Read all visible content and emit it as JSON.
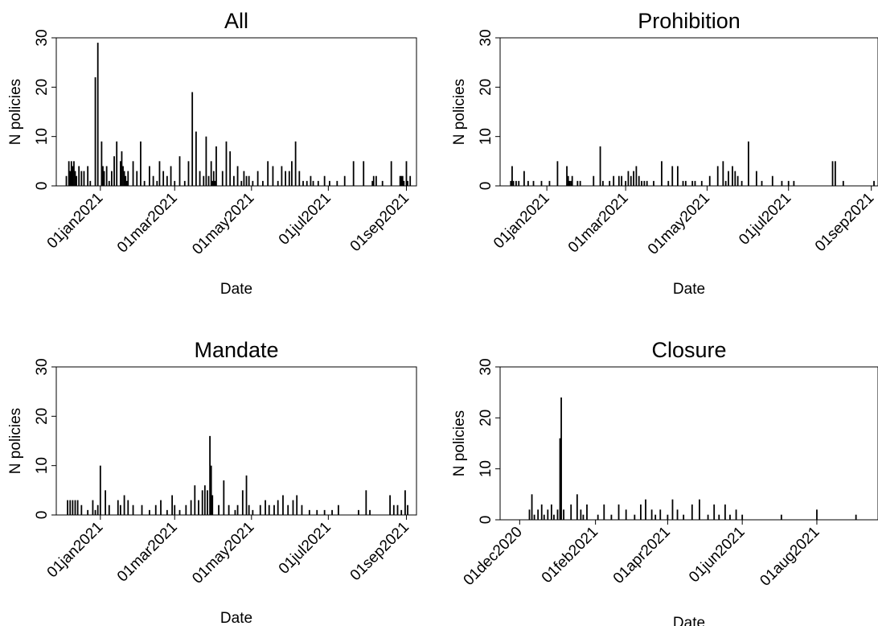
{
  "figure": {
    "background": "#ffffff",
    "bar_color": "#000000"
  },
  "chart_data": [
    {
      "type": "bar",
      "title": "All",
      "xlabel": "Date",
      "ylabel": "N policies",
      "ylim": [
        0,
        30
      ],
      "yticks": [
        0,
        10,
        20,
        30
      ],
      "xlim": [
        "2020-11-27",
        "2021-09-09"
      ],
      "xticks": [
        "2021-01-01",
        "2021-03-01",
        "2021-05-01",
        "2021-07-01",
        "2021-09-01"
      ],
      "xtick_labels": [
        "01jan2021",
        "01mar2021",
        "01may2021",
        "01jul2021",
        "01sep2021"
      ],
      "grid": false,
      "x": [
        "2020-12-05",
        "2020-12-07",
        "2020-12-08",
        "2020-12-09",
        "2020-12-10",
        "2020-12-11",
        "2020-12-12",
        "2020-12-13",
        "2020-12-15",
        "2020-12-17",
        "2020-12-19",
        "2020-12-22",
        "2020-12-24",
        "2020-12-28",
        "2020-12-30",
        "2021-01-02",
        "2021-01-03",
        "2021-01-04",
        "2021-01-06",
        "2021-01-08",
        "2021-01-10",
        "2021-01-12",
        "2021-01-14",
        "2021-01-17",
        "2021-01-18",
        "2021-01-19",
        "2021-01-20",
        "2021-01-21",
        "2021-01-22",
        "2021-01-23",
        "2021-01-27",
        "2021-01-30",
        "2021-02-02",
        "2021-02-05",
        "2021-02-09",
        "2021-02-12",
        "2021-02-15",
        "2021-02-17",
        "2021-02-20",
        "2021-02-23",
        "2021-02-26",
        "2021-03-01",
        "2021-03-05",
        "2021-03-09",
        "2021-03-12",
        "2021-03-15",
        "2021-03-18",
        "2021-03-21",
        "2021-03-24",
        "2021-03-26",
        "2021-03-28",
        "2021-03-30",
        "2021-03-31",
        "2021-04-01",
        "2021-04-02",
        "2021-04-03",
        "2021-04-08",
        "2021-04-11",
        "2021-04-14",
        "2021-04-17",
        "2021-04-20",
        "2021-04-23",
        "2021-04-25",
        "2021-04-27",
        "2021-04-29",
        "2021-05-02",
        "2021-05-06",
        "2021-05-10",
        "2021-05-14",
        "2021-05-18",
        "2021-05-22",
        "2021-05-25",
        "2021-05-28",
        "2021-05-31",
        "2021-06-02",
        "2021-06-05",
        "2021-06-08",
        "2021-06-11",
        "2021-06-14",
        "2021-06-17",
        "2021-06-19",
        "2021-06-23",
        "2021-06-28",
        "2021-07-02",
        "2021-07-08",
        "2021-07-14",
        "2021-07-21",
        "2021-07-29",
        "2021-08-05",
        "2021-08-06",
        "2021-08-08",
        "2021-08-13",
        "2021-08-20",
        "2021-08-27",
        "2021-08-28",
        "2021-08-29",
        "2021-08-30",
        "2021-09-01",
        "2021-09-02",
        "2021-09-04"
      ],
      "values": [
        2,
        5,
        3,
        5,
        4,
        5,
        3,
        2,
        4,
        3,
        3,
        4,
        1,
        22,
        29,
        9,
        4,
        3,
        4,
        1,
        3,
        6,
        9,
        5,
        7,
        4,
        3,
        2,
        1,
        3,
        5,
        3,
        9,
        1,
        4,
        2,
        1,
        5,
        3,
        2,
        4,
        1,
        6,
        1,
        5,
        19,
        11,
        3,
        2,
        10,
        2,
        5,
        1,
        3,
        1,
        8,
        3,
        9,
        7,
        2,
        4,
        1,
        3,
        2,
        2,
        1,
        3,
        1,
        5,
        4,
        1,
        4,
        3,
        3,
        5,
        9,
        3,
        1,
        1,
        2,
        1,
        1,
        2,
        1,
        1,
        2,
        5,
        5,
        1,
        2,
        2,
        1,
        5,
        2,
        2,
        2,
        1,
        5,
        1,
        2
      ]
    },
    {
      "type": "bar",
      "title": "Prohibition",
      "xlabel": "Date",
      "ylabel": "N policies",
      "ylim": [
        0,
        30
      ],
      "yticks": [
        0,
        10,
        20,
        30
      ],
      "xlim": [
        "2020-11-27",
        "2021-09-06"
      ],
      "xticks": [
        "2021-01-01",
        "2021-03-01",
        "2021-05-01",
        "2021-07-01",
        "2021-09-01"
      ],
      "xtick_labels": [
        "01jan2021",
        "01mar2021",
        "01may2021",
        "01jul2021",
        "01sep2021"
      ],
      "grid": false,
      "x": [
        "2020-12-05",
        "2020-12-06",
        "2020-12-07",
        "2020-12-09",
        "2020-12-11",
        "2020-12-15",
        "2020-12-18",
        "2020-12-22",
        "2020-12-28",
        "2021-01-03",
        "2021-01-09",
        "2021-01-16",
        "2021-01-17",
        "2021-01-18",
        "2021-01-19",
        "2021-01-20",
        "2021-01-24",
        "2021-01-26",
        "2021-02-05",
        "2021-02-10",
        "2021-02-12",
        "2021-02-17",
        "2021-02-20",
        "2021-02-24",
        "2021-02-26",
        "2021-03-01",
        "2021-03-03",
        "2021-03-05",
        "2021-03-07",
        "2021-03-09",
        "2021-03-11",
        "2021-03-13",
        "2021-03-15",
        "2021-03-17",
        "2021-03-22",
        "2021-03-28",
        "2021-04-02",
        "2021-04-05",
        "2021-04-09",
        "2021-04-13",
        "2021-04-15",
        "2021-04-20",
        "2021-04-22",
        "2021-04-27",
        "2021-05-03",
        "2021-05-09",
        "2021-05-13",
        "2021-05-15",
        "2021-05-17",
        "2021-05-20",
        "2021-05-22",
        "2021-05-24",
        "2021-05-27",
        "2021-06-01",
        "2021-06-07",
        "2021-06-11",
        "2021-06-19",
        "2021-06-26",
        "2021-07-01",
        "2021-07-05",
        "2021-08-03",
        "2021-08-05",
        "2021-08-11",
        "2021-09-03"
      ],
      "values": [
        1,
        4,
        1,
        1,
        1,
        3,
        1,
        1,
        1,
        1,
        5,
        4,
        2,
        1,
        1,
        2,
        1,
        1,
        2,
        8,
        1,
        1,
        2,
        2,
        2,
        1,
        3,
        2,
        3,
        4,
        2,
        1,
        1,
        1,
        1,
        5,
        1,
        4,
        4,
        1,
        1,
        1,
        1,
        1,
        2,
        4,
        5,
        1,
        3,
        4,
        3,
        2,
        1,
        9,
        3,
        1,
        2,
        1,
        1,
        1,
        5,
        5,
        1,
        1
      ]
    },
    {
      "type": "bar",
      "title": "Mandate",
      "xlabel": "Date",
      "ylabel": "N policies",
      "ylim": [
        0,
        30
      ],
      "yticks": [
        0,
        10,
        20,
        30
      ],
      "xlim": [
        "2020-11-27",
        "2021-09-09"
      ],
      "xticks": [
        "2021-01-01",
        "2021-03-01",
        "2021-05-01",
        "2021-07-01",
        "2021-09-01"
      ],
      "xtick_labels": [
        "01jan2021",
        "01mar2021",
        "01may2021",
        "01jul2021",
        "01sep2021"
      ],
      "grid": false,
      "x": [
        "2020-12-06",
        "2020-12-08",
        "2020-12-10",
        "2020-12-12",
        "2020-12-14",
        "2020-12-17",
        "2020-12-22",
        "2020-12-26",
        "2020-12-28",
        "2020-12-30",
        "2021-01-01",
        "2021-01-05",
        "2021-01-08",
        "2021-01-15",
        "2021-01-17",
        "2021-01-20",
        "2021-01-23",
        "2021-01-27",
        "2021-02-03",
        "2021-02-09",
        "2021-02-14",
        "2021-02-18",
        "2021-02-23",
        "2021-02-27",
        "2021-03-01",
        "2021-03-05",
        "2021-03-10",
        "2021-03-14",
        "2021-03-17",
        "2021-03-20",
        "2021-03-23",
        "2021-03-25",
        "2021-03-27",
        "2021-03-29",
        "2021-03-30",
        "2021-03-31",
        "2021-04-05",
        "2021-04-09",
        "2021-04-13",
        "2021-04-18",
        "2021-04-20",
        "2021-04-24",
        "2021-04-27",
        "2021-04-29",
        "2021-05-02",
        "2021-05-08",
        "2021-05-12",
        "2021-05-15",
        "2021-05-19",
        "2021-05-22",
        "2021-05-26",
        "2021-05-30",
        "2021-06-03",
        "2021-06-06",
        "2021-06-10",
        "2021-06-16",
        "2021-06-22",
        "2021-06-28",
        "2021-07-04",
        "2021-07-09",
        "2021-07-25",
        "2021-07-31",
        "2021-08-03",
        "2021-08-19",
        "2021-08-22",
        "2021-08-25",
        "2021-08-28",
        "2021-08-31",
        "2021-09-02"
      ],
      "values": [
        3,
        3,
        3,
        3,
        3,
        2,
        1,
        3,
        1,
        2,
        10,
        5,
        2,
        3,
        2,
        4,
        3,
        2,
        2,
        1,
        2,
        3,
        1,
        4,
        2,
        1,
        2,
        3,
        6,
        3,
        5,
        6,
        5,
        16,
        10,
        4,
        2,
        7,
        2,
        1,
        2,
        5,
        8,
        2,
        1,
        2,
        3,
        2,
        2,
        3,
        4,
        2,
        3,
        4,
        2,
        1,
        1,
        1,
        1,
        2,
        1,
        5,
        1,
        4,
        2,
        2,
        1,
        5,
        2
      ]
    },
    {
      "type": "bar",
      "title": "Closure",
      "xlabel": "Date",
      "ylabel": "N policies",
      "ylim": [
        0,
        30
      ],
      "yticks": [
        0,
        10,
        20,
        30
      ],
      "xlim": [
        "2020-11-15",
        "2021-09-20"
      ],
      "xticks": [
        "2020-12-01",
        "2021-02-01",
        "2021-04-01",
        "2021-06-01",
        "2021-08-01"
      ],
      "xtick_labels": [
        "01dec2020",
        "01feb2021",
        "01apr2021",
        "01jun2021",
        "01aug2021"
      ],
      "grid": false,
      "x": [
        "2020-12-09",
        "2020-12-11",
        "2020-12-13",
        "2020-12-16",
        "2020-12-19",
        "2020-12-21",
        "2020-12-24",
        "2020-12-27",
        "2020-12-29",
        "2021-01-01",
        "2021-01-03",
        "2021-01-04",
        "2021-01-06",
        "2021-01-12",
        "2021-01-17",
        "2021-01-20",
        "2021-01-22",
        "2021-01-25",
        "2021-02-03",
        "2021-02-08",
        "2021-02-14",
        "2021-02-20",
        "2021-02-26",
        "2021-03-05",
        "2021-03-10",
        "2021-03-14",
        "2021-03-19",
        "2021-03-22",
        "2021-03-26",
        "2021-04-01",
        "2021-04-05",
        "2021-04-09",
        "2021-04-14",
        "2021-04-21",
        "2021-04-27",
        "2021-05-04",
        "2021-05-09",
        "2021-05-13",
        "2021-05-18",
        "2021-05-22",
        "2021-05-27",
        "2021-06-01",
        "2021-07-03",
        "2021-08-01",
        "2021-09-02"
      ],
      "values": [
        2,
        5,
        1,
        2,
        3,
        1,
        2,
        3,
        1,
        2,
        16,
        24,
        2,
        3,
        5,
        2,
        1,
        3,
        1,
        3,
        1,
        3,
        2,
        1,
        3,
        4,
        2,
        1,
        2,
        1,
        4,
        2,
        1,
        3,
        4,
        1,
        3,
        1,
        3,
        1,
        2,
        1,
        1,
        2,
        1
      ]
    }
  ]
}
